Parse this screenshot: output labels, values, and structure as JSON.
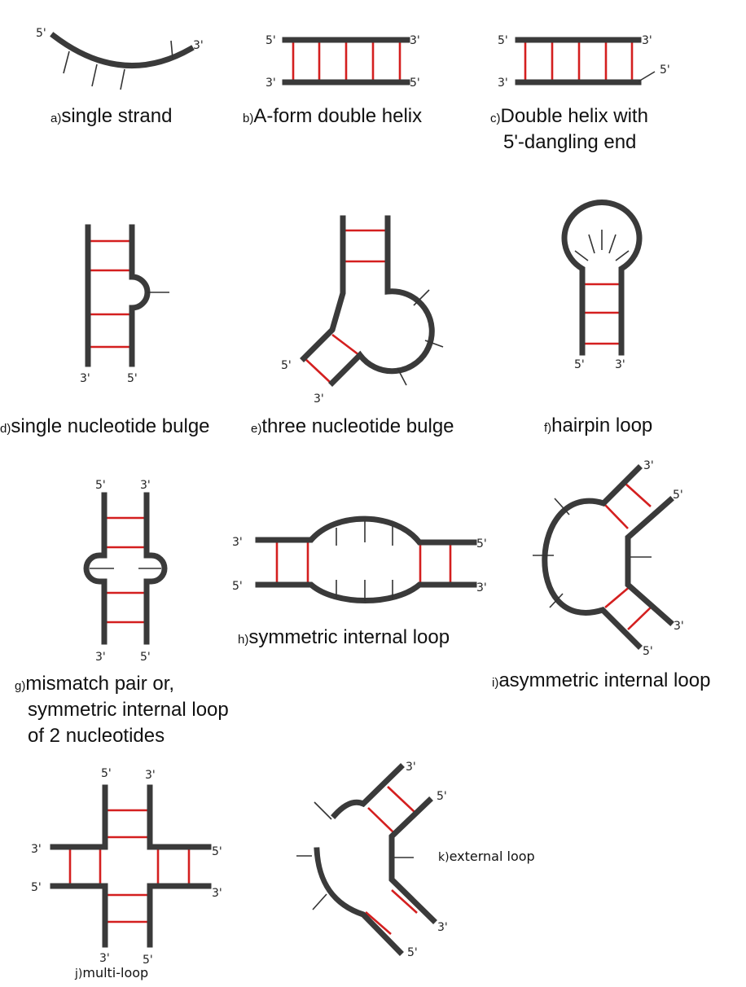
{
  "colors": {
    "strand": "#3a3a3a",
    "pair": "#d41f1f",
    "text": "#111111"
  },
  "five_prime": "5'",
  "three_prime": "3'",
  "captions": {
    "a": {
      "letter": "a)",
      "text": "single strand"
    },
    "b": {
      "letter": "b)",
      "text": "A-form double helix"
    },
    "c": {
      "letter": "c)",
      "line1": "Double helix with",
      "line2": "5'-dangling end"
    },
    "d": {
      "letter": "d)",
      "text": "single nucleotide bulge"
    },
    "e": {
      "letter": "e)",
      "text": "three nucleotide bulge"
    },
    "f": {
      "letter": "f)",
      "text": "hairpin loop"
    },
    "g": {
      "letter": "g)",
      "line1": "mismatch pair or,",
      "line2": "symmetric internal loop",
      "line3": "of 2 nucleotides"
    },
    "h": {
      "letter": "h)",
      "text": "symmetric internal loop"
    },
    "i": {
      "letter": "i)",
      "text": "asymmetric internal loop"
    },
    "j": {
      "letter": "j)",
      "text": "multi-loop"
    },
    "k": {
      "letter": "k)",
      "text": "external loop"
    }
  }
}
